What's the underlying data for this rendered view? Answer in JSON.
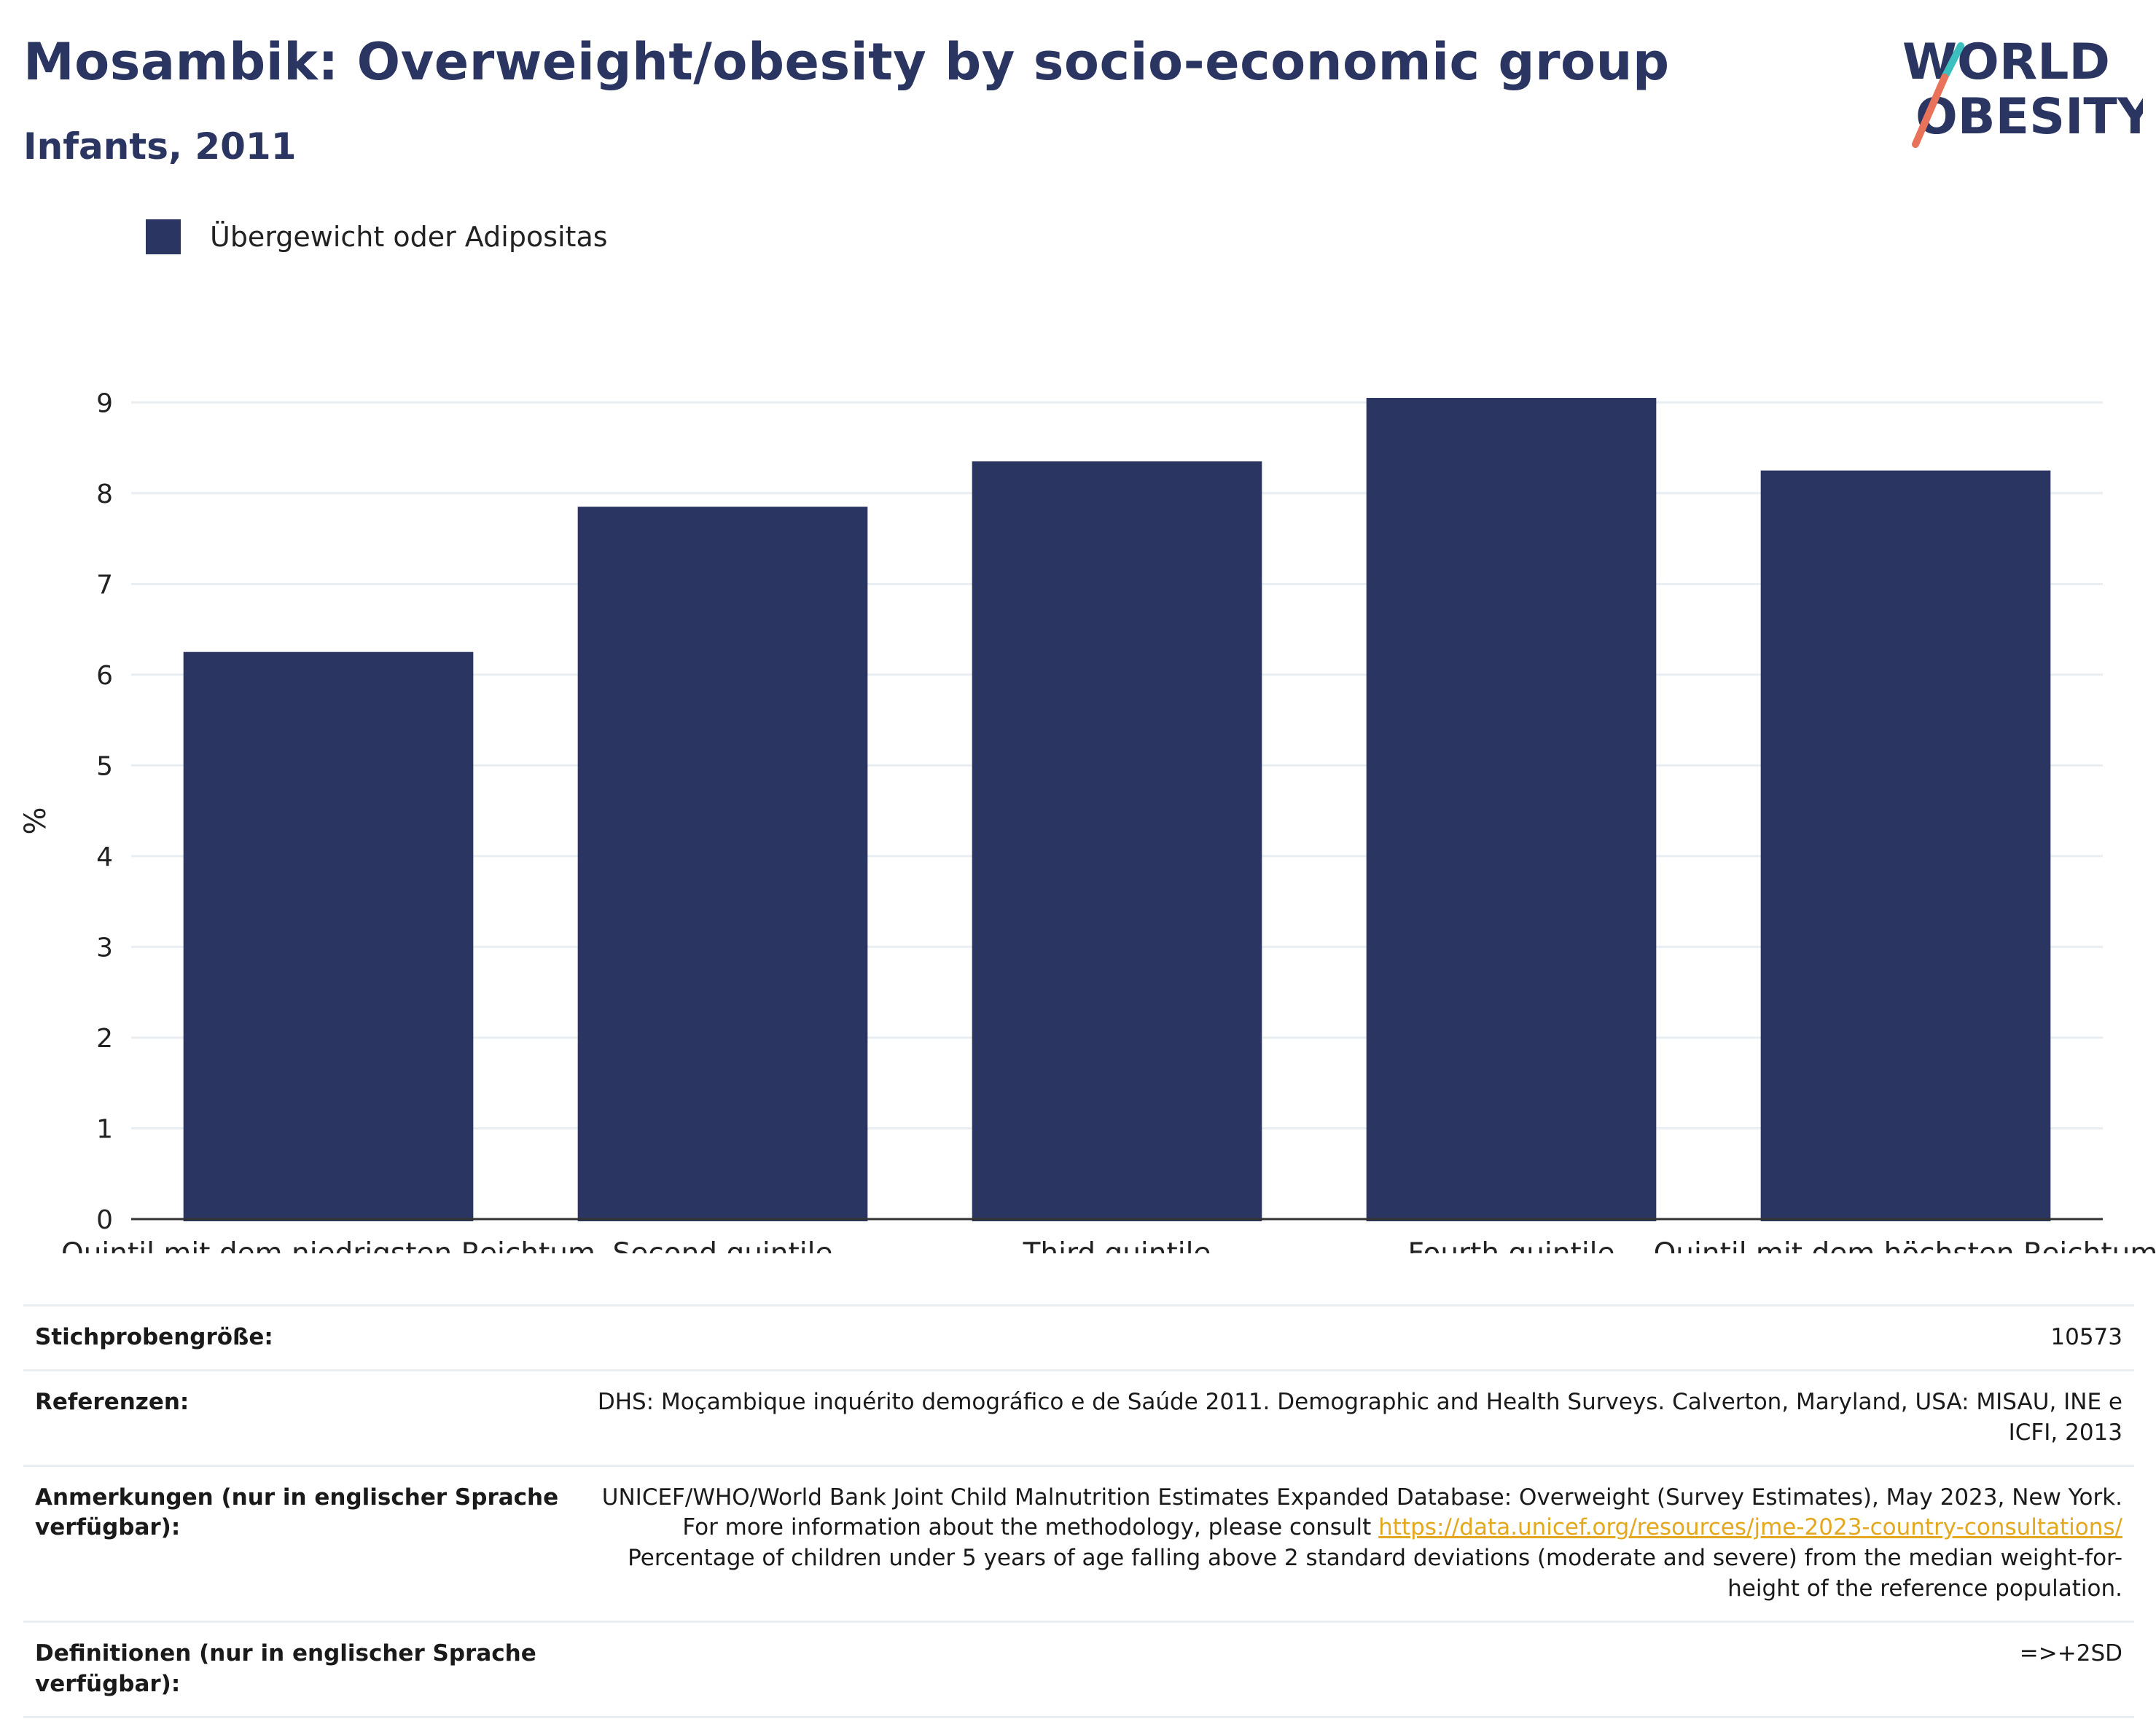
{
  "header": {
    "title": "Mosambik: Overweight/obesity by socio-economic group",
    "subtitle": "Infants, 2011"
  },
  "logo": {
    "line1": "WORLD",
    "line2": "OBESITY",
    "text_color": "#2a3561",
    "accent_teal": "#3bbfbf",
    "accent_coral": "#e8735a"
  },
  "legend": {
    "label": "Übergewicht oder Adipositas",
    "color": "#2a3561"
  },
  "chart_data": {
    "type": "bar",
    "categories": [
      "Quintil mit dem niedrigsten Reichtum",
      "Second quintile",
      "Third quintile",
      "Fourth quintile",
      "Quintil mit dem höchsten Reichtum"
    ],
    "series": [
      {
        "name": "Übergewicht oder Adipositas",
        "values": [
          6.25,
          7.85,
          8.35,
          9.05,
          8.25
        ],
        "color": "#2a3561"
      }
    ],
    "ylabel": "%",
    "xlabel": "",
    "ylim": [
      0,
      9.5
    ],
    "yticks": [
      0,
      1,
      2,
      3,
      4,
      5,
      6,
      7,
      8,
      9
    ],
    "grid": true,
    "legend_position": "top-left"
  },
  "info": {
    "sample_size_label": "Stichprobengröße:",
    "sample_size_value": "10573",
    "references_label": "Referenzen:",
    "references_value": "DHS: Moçambique inquérito demográfico e de Saúde 2011. Demographic and Health Surveys. Calverton, Maryland, USA: MISAU, INE e ICFI, 2013",
    "notes_label": "Anmerkungen (nur in englischer Sprache verfügbar):",
    "notes_text_before": "UNICEF/WHO/World Bank Joint Child Malnutrition Estimates Expanded Database: Overweight (Survey Estimates), May 2023, New York. For more information about the methodology, please consult",
    "notes_link": "https://data.unicef.org/resources/jme-2023-country-consultations/",
    "notes_text_after": "Percentage of children under 5 years of age falling above 2 standard deviations (moderate and severe) from the median weight-for-height of the reference population.",
    "definitions_label": "Definitionen (nur in englischer Sprache verfügbar):",
    "definitions_value": "=>+2SD"
  }
}
